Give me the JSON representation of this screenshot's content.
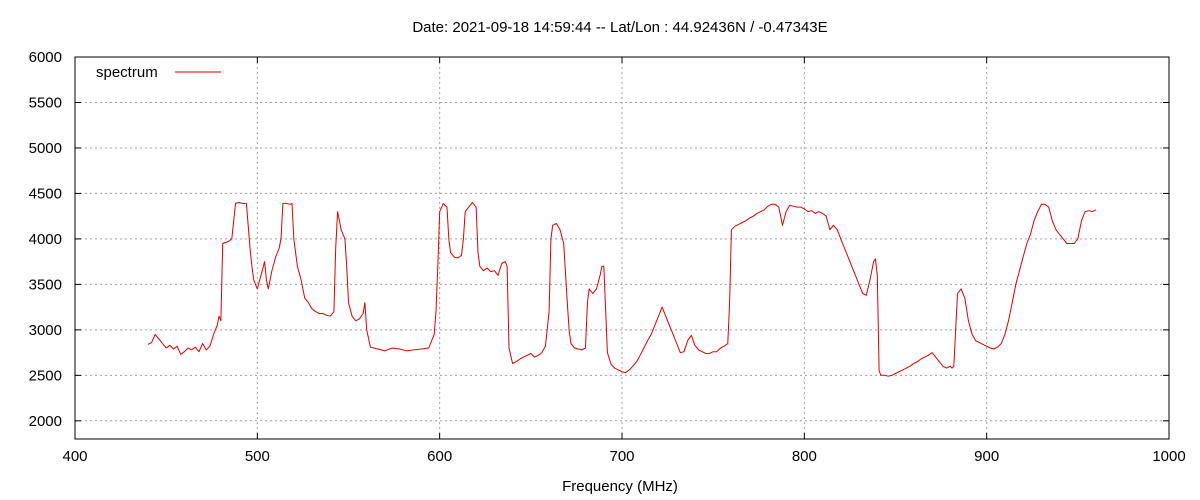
{
  "chart_data": {
    "type": "line",
    "title": "Date: 2021-09-18 14:59:44  --  Lat/Lon : 44.92436N / -0.47343E",
    "xlabel": "Frequency (MHz)",
    "ylabel": "",
    "xlim": [
      400,
      1000
    ],
    "ylim": [
      1800,
      6000
    ],
    "xticks": [
      400,
      500,
      600,
      700,
      800,
      900,
      1000
    ],
    "yticks": [
      2000,
      2500,
      3000,
      3500,
      4000,
      4500,
      5000,
      5500,
      6000
    ],
    "grid": true,
    "legend_position": "top-left",
    "colors": {
      "series": "#e00000",
      "grid": "#a0a0a0",
      "axis": "#000000"
    },
    "series": [
      {
        "name": "spectrum",
        "x": [
          440,
          442,
          444,
          446,
          448,
          450,
          452,
          454,
          456,
          458,
          460,
          462,
          464,
          466,
          468,
          470,
          472,
          474,
          476,
          478,
          479,
          480,
          481,
          484,
          486,
          488,
          490,
          492,
          494,
          496,
          497,
          498,
          500,
          502,
          504,
          505,
          506,
          508,
          510,
          512,
          513,
          514,
          516,
          518,
          519,
          520,
          522,
          524,
          526,
          528,
          530,
          532,
          534,
          536,
          538,
          540,
          542,
          543,
          544,
          546,
          548,
          549,
          550,
          552,
          554,
          556,
          558,
          559,
          560,
          562,
          566,
          570,
          574,
          578,
          582,
          586,
          590,
          594,
          597,
          598,
          599,
          600,
          602,
          604,
          605,
          606,
          608,
          610,
          612,
          613,
          614,
          616,
          618,
          620,
          621,
          622,
          624,
          626,
          628,
          630,
          632,
          634,
          636,
          637,
          638,
          640,
          642,
          644,
          646,
          648,
          650,
          652,
          654,
          656,
          658,
          660,
          661,
          662,
          664,
          666,
          668,
          670,
          671,
          672,
          674,
          676,
          678,
          680,
          681,
          682,
          684,
          686,
          688,
          689,
          690,
          692,
          694,
          696,
          698,
          700,
          702,
          704,
          706,
          708,
          710,
          712,
          714,
          716,
          718,
          720,
          722,
          724,
          726,
          728,
          730,
          732,
          734,
          736,
          738,
          740,
          742,
          744,
          746,
          748,
          750,
          752,
          754,
          756,
          758,
          759,
          760,
          762,
          764,
          766,
          768,
          770,
          772,
          774,
          776,
          778,
          780,
          782,
          784,
          786,
          788,
          790,
          792,
          794,
          796,
          798,
          800,
          802,
          804,
          806,
          808,
          810,
          812,
          814,
          816,
          818,
          820,
          822,
          824,
          826,
          828,
          830,
          832,
          834,
          836,
          838,
          839,
          840,
          841,
          842,
          844,
          846,
          848,
          850,
          852,
          854,
          856,
          858,
          860,
          862,
          864,
          866,
          868,
          870,
          872,
          874,
          876,
          878,
          880,
          881,
          882,
          884,
          886,
          888,
          890,
          892,
          894,
          896,
          898,
          900,
          902,
          904,
          906,
          908,
          910,
          912,
          914,
          916,
          918,
          920,
          922,
          924,
          926,
          928,
          930,
          932,
          934,
          936,
          938,
          940,
          942,
          944,
          946,
          948,
          950,
          952,
          954,
          956,
          958,
          960
        ],
        "values": [
          2840,
          2860,
          2950,
          2900,
          2850,
          2800,
          2830,
          2790,
          2820,
          2730,
          2760,
          2800,
          2780,
          2810,
          2760,
          2850,
          2780,
          2820,
          2950,
          3050,
          3150,
          3100,
          3950,
          3970,
          4000,
          4390,
          4400,
          4390,
          4390,
          3900,
          3700,
          3550,
          3450,
          3600,
          3750,
          3550,
          3450,
          3650,
          3800,
          3900,
          4000,
          4390,
          4390,
          4380,
          4390,
          4000,
          3700,
          3550,
          3350,
          3300,
          3230,
          3200,
          3180,
          3180,
          3160,
          3150,
          3200,
          3900,
          4300,
          4100,
          4000,
          3700,
          3300,
          3150,
          3100,
          3120,
          3180,
          3300,
          3000,
          2810,
          2790,
          2770,
          2800,
          2790,
          2770,
          2780,
          2790,
          2800,
          2950,
          3200,
          3700,
          4300,
          4390,
          4350,
          4000,
          3850,
          3800,
          3790,
          3820,
          4000,
          4300,
          4350,
          4400,
          4350,
          3850,
          3700,
          3650,
          3680,
          3640,
          3650,
          3600,
          3730,
          3750,
          3700,
          2800,
          2630,
          2650,
          2680,
          2700,
          2720,
          2740,
          2700,
          2720,
          2750,
          2820,
          3200,
          4000,
          4150,
          4170,
          4100,
          3950,
          3300,
          3000,
          2850,
          2800,
          2790,
          2780,
          2800,
          3300,
          3450,
          3400,
          3450,
          3600,
          3700,
          3700,
          2750,
          2620,
          2580,
          2560,
          2540,
          2530,
          2560,
          2600,
          2650,
          2720,
          2800,
          2880,
          2950,
          3050,
          3150,
          3250,
          3150,
          3050,
          2950,
          2850,
          2750,
          2760,
          2880,
          2940,
          2830,
          2780,
          2760,
          2740,
          2740,
          2760,
          2760,
          2800,
          2820,
          2850,
          3300,
          4100,
          4140,
          4160,
          4180,
          4200,
          4230,
          4250,
          4280,
          4300,
          4320,
          4360,
          4380,
          4380,
          4350,
          4150,
          4300,
          4370,
          4360,
          4350,
          4350,
          4330,
          4300,
          4310,
          4280,
          4300,
          4280,
          4250,
          4100,
          4150,
          4100,
          4000,
          3900,
          3800,
          3700,
          3600,
          3500,
          3400,
          3380,
          3550,
          3750,
          3780,
          3600,
          2550,
          2500,
          2500,
          2490,
          2500,
          2520,
          2540,
          2560,
          2580,
          2600,
          2630,
          2650,
          2680,
          2700,
          2720,
          2750,
          2700,
          2650,
          2600,
          2580,
          2600,
          2580,
          2600,
          3400,
          3450,
          3350,
          3100,
          2950,
          2880,
          2860,
          2840,
          2820,
          2800,
          2790,
          2810,
          2850,
          2950,
          3100,
          3300,
          3500,
          3650,
          3800,
          3950,
          4050,
          4200,
          4300,
          4380,
          4380,
          4350,
          4200,
          4100,
          4050,
          4000,
          3950,
          3950,
          3950,
          4000,
          4200,
          4300,
          4310,
          4300,
          4320
        ]
      }
    ]
  }
}
